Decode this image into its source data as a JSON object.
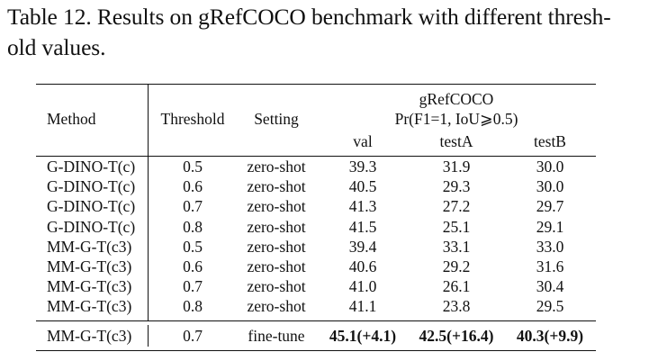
{
  "caption": {
    "line1": "Table 12. Results on gRefCOCO benchmark with different thresh-",
    "line2": "old values."
  },
  "table": {
    "header": {
      "method": "Method",
      "threshold": "Threshold",
      "setting": "Setting",
      "group": "gRefCOCO",
      "metric": "Pr(F1=1, IoU⩾0.5)",
      "splits": [
        "val",
        "testA",
        "testB"
      ]
    },
    "rows": [
      {
        "method": "G-DINO-T(c)",
        "threshold": "0.5",
        "setting": "zero-shot",
        "val": "39.3",
        "testA": "31.9",
        "testB": "30.0"
      },
      {
        "method": "G-DINO-T(c)",
        "threshold": "0.6",
        "setting": "zero-shot",
        "val": "40.5",
        "testA": "29.3",
        "testB": "30.0"
      },
      {
        "method": "G-DINO-T(c)",
        "threshold": "0.7",
        "setting": "zero-shot",
        "val": "41.3",
        "testA": "27.2",
        "testB": "29.7"
      },
      {
        "method": "G-DINO-T(c)",
        "threshold": "0.8",
        "setting": "zero-shot",
        "val": "41.5",
        "testA": "25.1",
        "testB": "29.1"
      },
      {
        "method": "MM-G-T(c3)",
        "threshold": "0.5",
        "setting": "zero-shot",
        "val": "39.4",
        "testA": "33.1",
        "testB": "33.0"
      },
      {
        "method": "MM-G-T(c3)",
        "threshold": "0.6",
        "setting": "zero-shot",
        "val": "40.6",
        "testA": "29.2",
        "testB": "31.6"
      },
      {
        "method": "MM-G-T(c3)",
        "threshold": "0.7",
        "setting": "zero-shot",
        "val": "41.0",
        "testA": "26.1",
        "testB": "30.4"
      },
      {
        "method": "MM-G-T(c3)",
        "threshold": "0.8",
        "setting": "zero-shot",
        "val": "41.1",
        "testA": "23.8",
        "testB": "29.5"
      }
    ],
    "final_row": {
      "method": "MM-G-T(c3)",
      "threshold": "0.7",
      "setting": "fine-tune",
      "val": "45.1(+4.1)",
      "testA": "42.5(+16.4)",
      "testB": "40.3(+9.9)"
    }
  }
}
